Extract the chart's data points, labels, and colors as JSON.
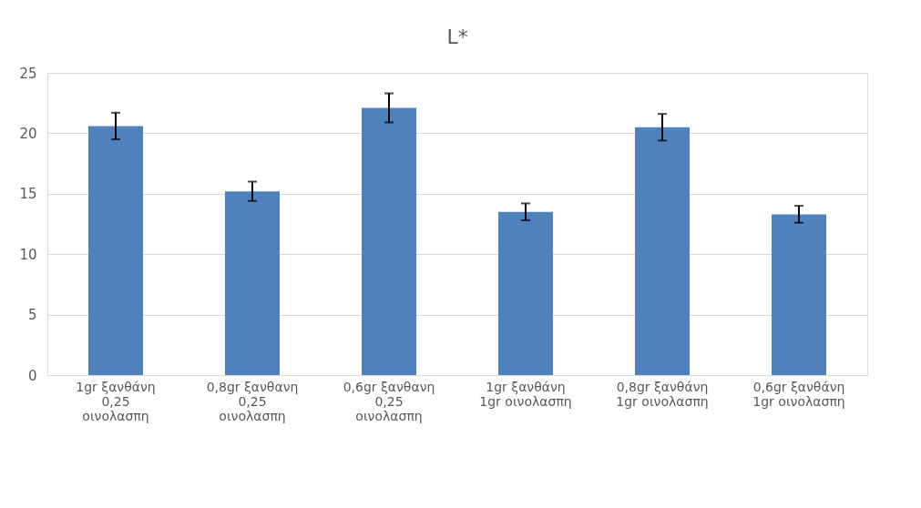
{
  "chart_data": {
    "type": "bar",
    "title": "L*",
    "categories": [
      "1gr ξανθάνη 0,25 οινολασπη",
      "0,8gr ξανθανη 0,25 οινολασπη",
      "0,6gr ξανθανη 0,25 οινολασπη",
      "1gr ξανθάνη 1gr οινολασπη",
      "0,8gr ξανθάνη 1gr οινολασπη",
      "0,6gr ξανθάνη 1gr οινολασπη"
    ],
    "values": [
      20.6,
      15.2,
      22.1,
      13.5,
      20.5,
      13.3
    ],
    "errors": [
      1.1,
      0.8,
      1.2,
      0.7,
      1.1,
      0.7
    ],
    "color": "#4f81bd",
    "ylim": [
      0,
      25
    ],
    "yticks": [
      0,
      5,
      10,
      15,
      20,
      25
    ],
    "grid": "y"
  }
}
